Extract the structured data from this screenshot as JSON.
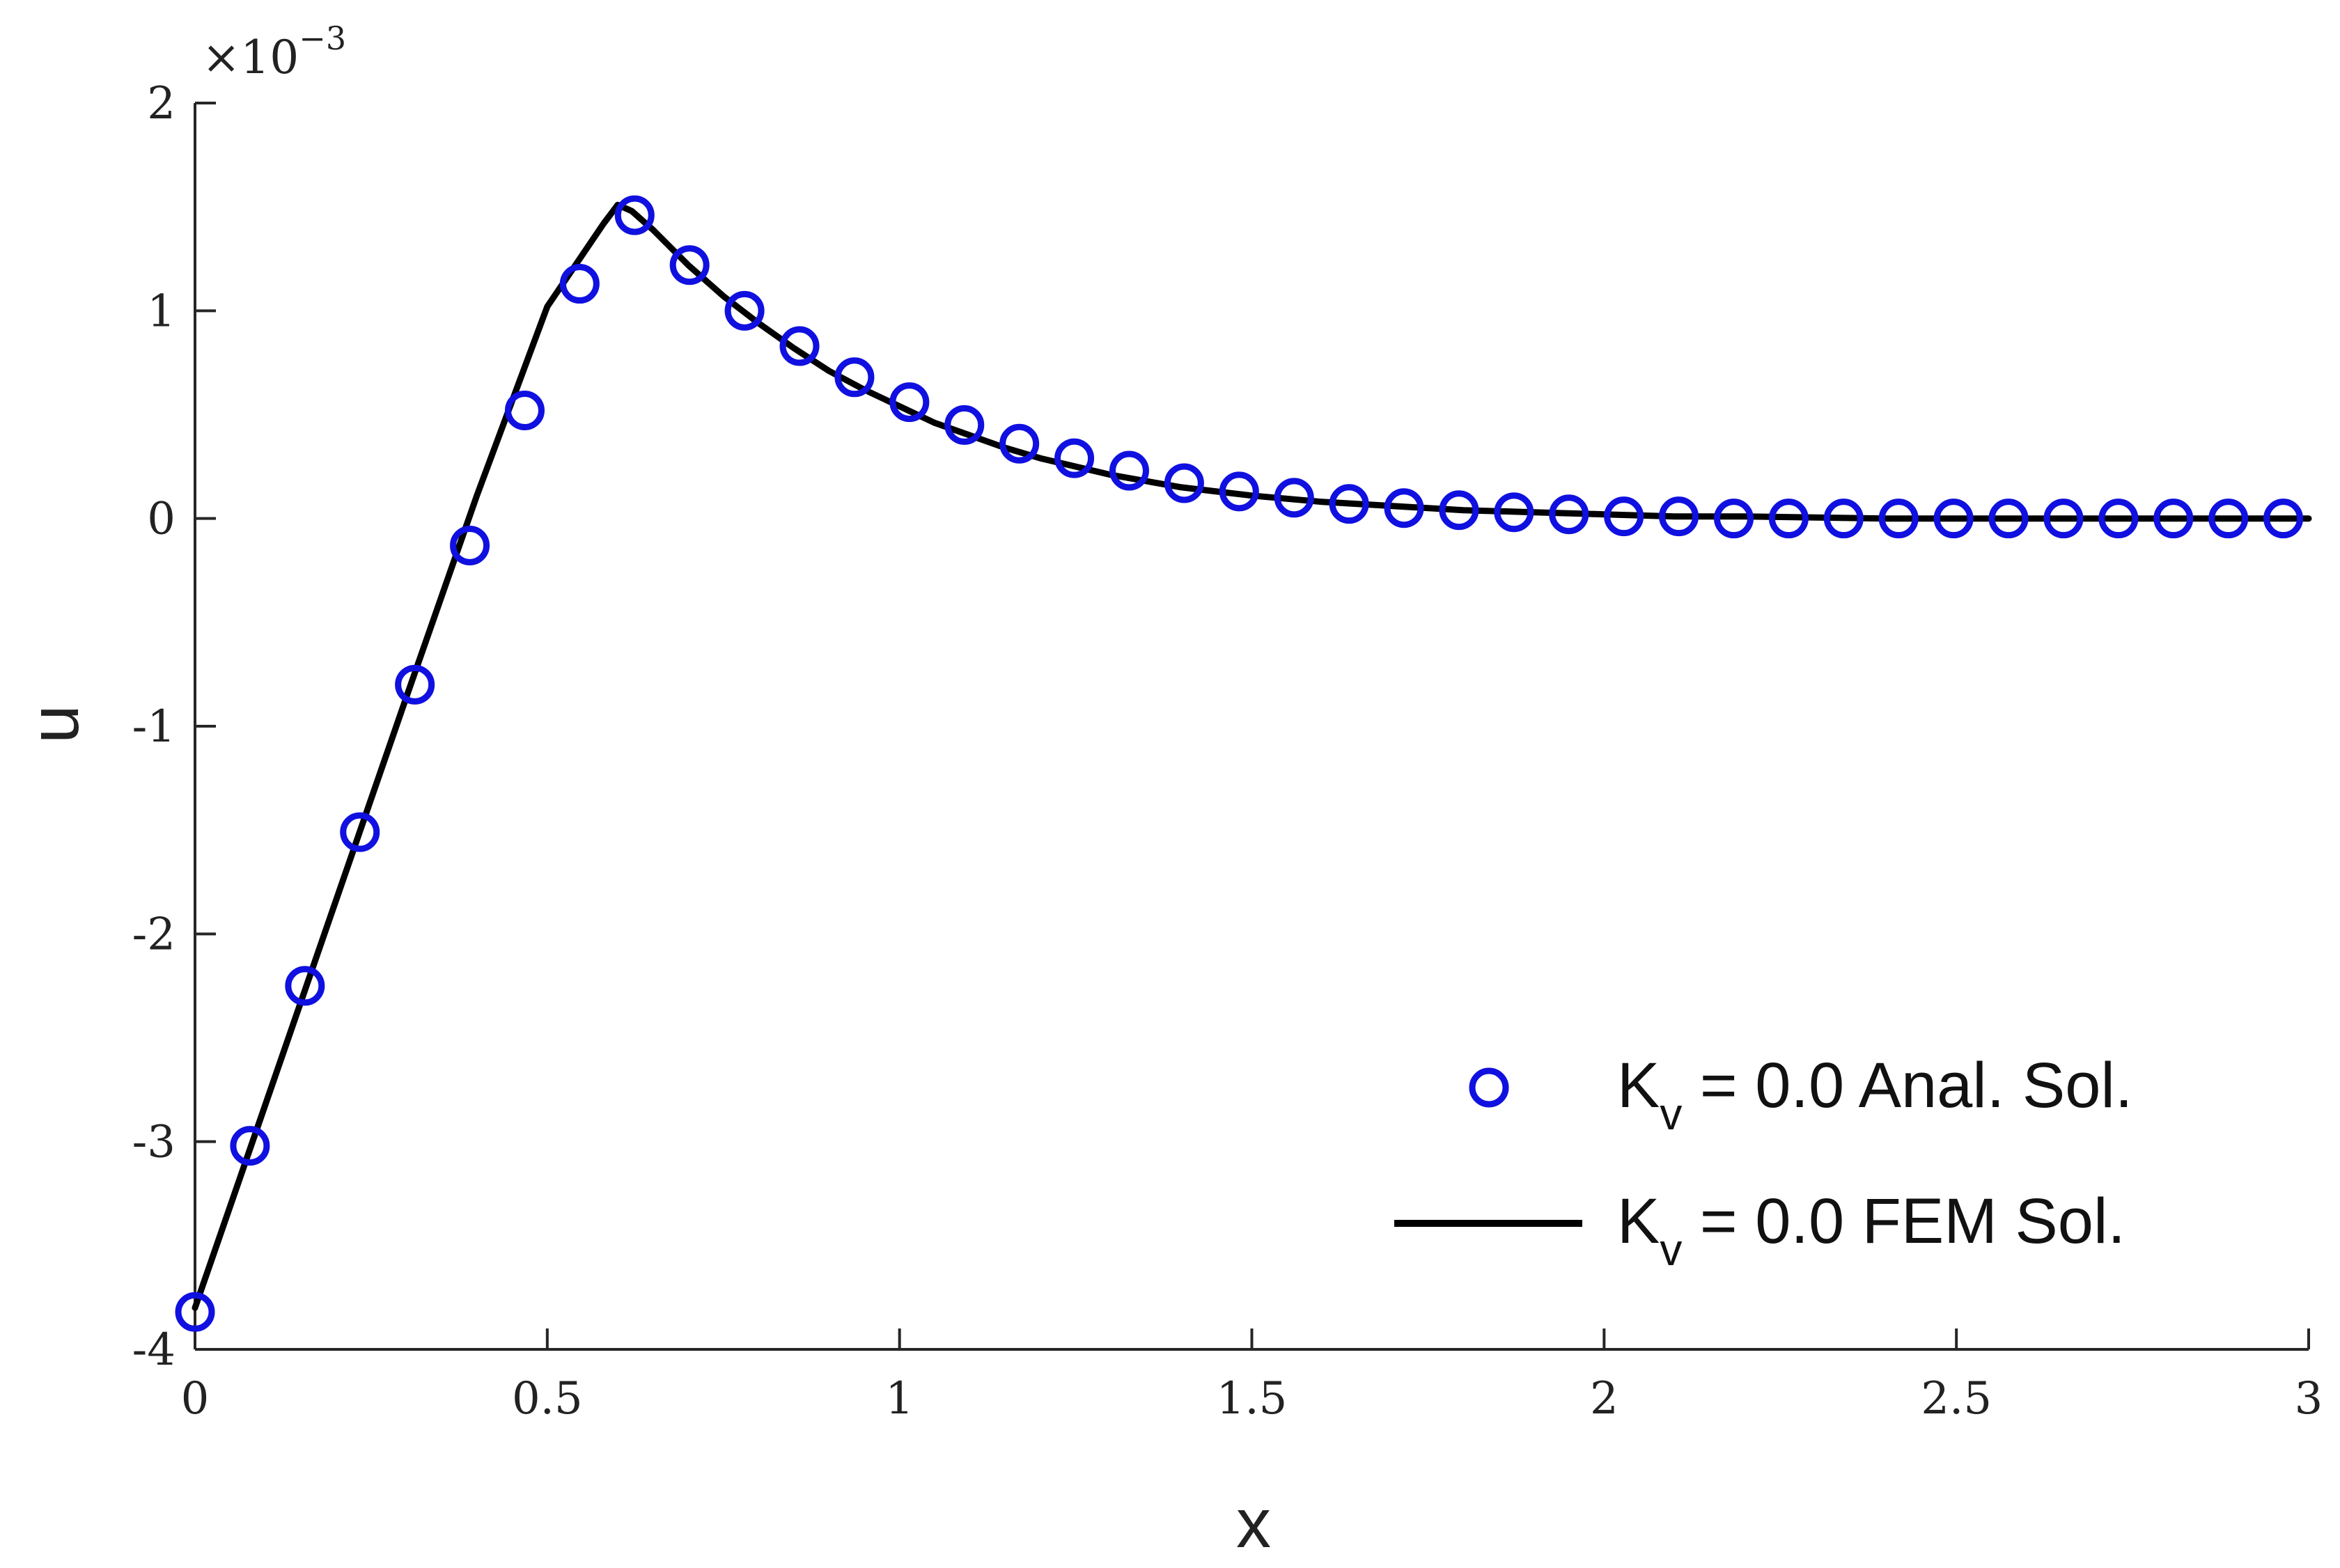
{
  "chart_data": {
    "type": "line",
    "xlabel": "x",
    "ylabel": "u",
    "y_exponent_label": "×10",
    "y_exponent_power": "−3",
    "xlim": [
      0,
      3
    ],
    "ylim": [
      -4,
      2
    ],
    "x_ticks": [
      0,
      0.5,
      1,
      1.5,
      2,
      2.5,
      3
    ],
    "x_tick_labels": [
      "0",
      "0.5",
      "1",
      "1.5",
      "2",
      "2.5",
      "3"
    ],
    "y_ticks": [
      -4,
      -3,
      -2,
      -1,
      0,
      1,
      2
    ],
    "y_tick_labels": [
      "-4",
      "-3",
      "-2",
      "-1",
      "0",
      "1",
      "2"
    ],
    "grid": false,
    "legend_position": "bottom-right",
    "series": [
      {
        "name_main": "K",
        "name_sub": "v",
        "name_rest": " = 0.0 Anal. Sol.",
        "style": "markers",
        "color": "#1010e0",
        "x": [
          0,
          0.078,
          0.156,
          0.234,
          0.312,
          0.39,
          0.468,
          0.546,
          0.624,
          0.702,
          0.78,
          0.858,
          0.936,
          1.014,
          1.092,
          1.17,
          1.248,
          1.326,
          1.404,
          1.482,
          1.56,
          1.638,
          1.716,
          1.794,
          1.872,
          1.95,
          2.028,
          2.106,
          2.184,
          2.262,
          2.34,
          2.418,
          2.496,
          2.574,
          2.652,
          2.73,
          2.808,
          2.886,
          2.964
        ],
        "y": [
          -3.82,
          -3.02,
          -2.25,
          -1.51,
          -0.8,
          -0.13,
          0.52,
          1.13,
          1.46,
          1.22,
          1.0,
          0.83,
          0.68,
          0.56,
          0.45,
          0.36,
          0.29,
          0.23,
          0.17,
          0.13,
          0.1,
          0.07,
          0.05,
          0.04,
          0.03,
          0.02,
          0.01,
          0.01,
          0.0,
          0.0,
          0.0,
          0.0,
          0.0,
          0.0,
          0.0,
          0.0,
          0.0,
          0.0,
          0.0
        ]
      },
      {
        "name_main": "K",
        "name_sub": "v",
        "name_rest": " = 0.0 FEM Sol.",
        "style": "line",
        "color": "#000000",
        "x": [
          0,
          0.1,
          0.2,
          0.3,
          0.4,
          0.5,
          0.58,
          0.6,
          0.62,
          0.65,
          0.7,
          0.75,
          0.8,
          0.85,
          0.9,
          0.95,
          1.0,
          1.05,
          1.1,
          1.15,
          1.2,
          1.25,
          1.3,
          1.35,
          1.4,
          1.45,
          1.5,
          1.6,
          1.7,
          1.8,
          1.9,
          2.0,
          2.1,
          2.2,
          2.4,
          2.6,
          2.8,
          3.0
        ],
        "y": [
          -3.8,
          -2.82,
          -1.84,
          -0.86,
          0.11,
          1.02,
          1.42,
          1.51,
          1.48,
          1.39,
          1.22,
          1.07,
          0.94,
          0.82,
          0.71,
          0.62,
          0.54,
          0.46,
          0.4,
          0.34,
          0.29,
          0.25,
          0.21,
          0.18,
          0.15,
          0.13,
          0.11,
          0.08,
          0.06,
          0.04,
          0.03,
          0.02,
          0.01,
          0.01,
          0.0,
          0.0,
          0.0,
          0.0
        ]
      }
    ]
  }
}
